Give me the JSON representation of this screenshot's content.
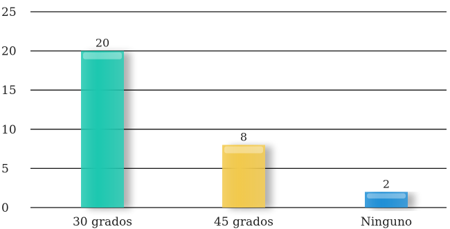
{
  "chart_data": {
    "type": "bar",
    "title": "",
    "xlabel": "",
    "ylabel": "",
    "categories": [
      "30 grados",
      "45 grados",
      "Ninguno"
    ],
    "values": [
      20,
      8,
      2
    ],
    "data_labels": [
      "20",
      "8",
      "2"
    ],
    "bar_colors": [
      "#1ec8b0",
      "#f2c94c",
      "#1f8fd6"
    ],
    "ylim": [
      0,
      25
    ],
    "yticks": [
      0,
      5,
      10,
      15,
      20,
      25
    ],
    "grid": true,
    "legend": "none"
  }
}
